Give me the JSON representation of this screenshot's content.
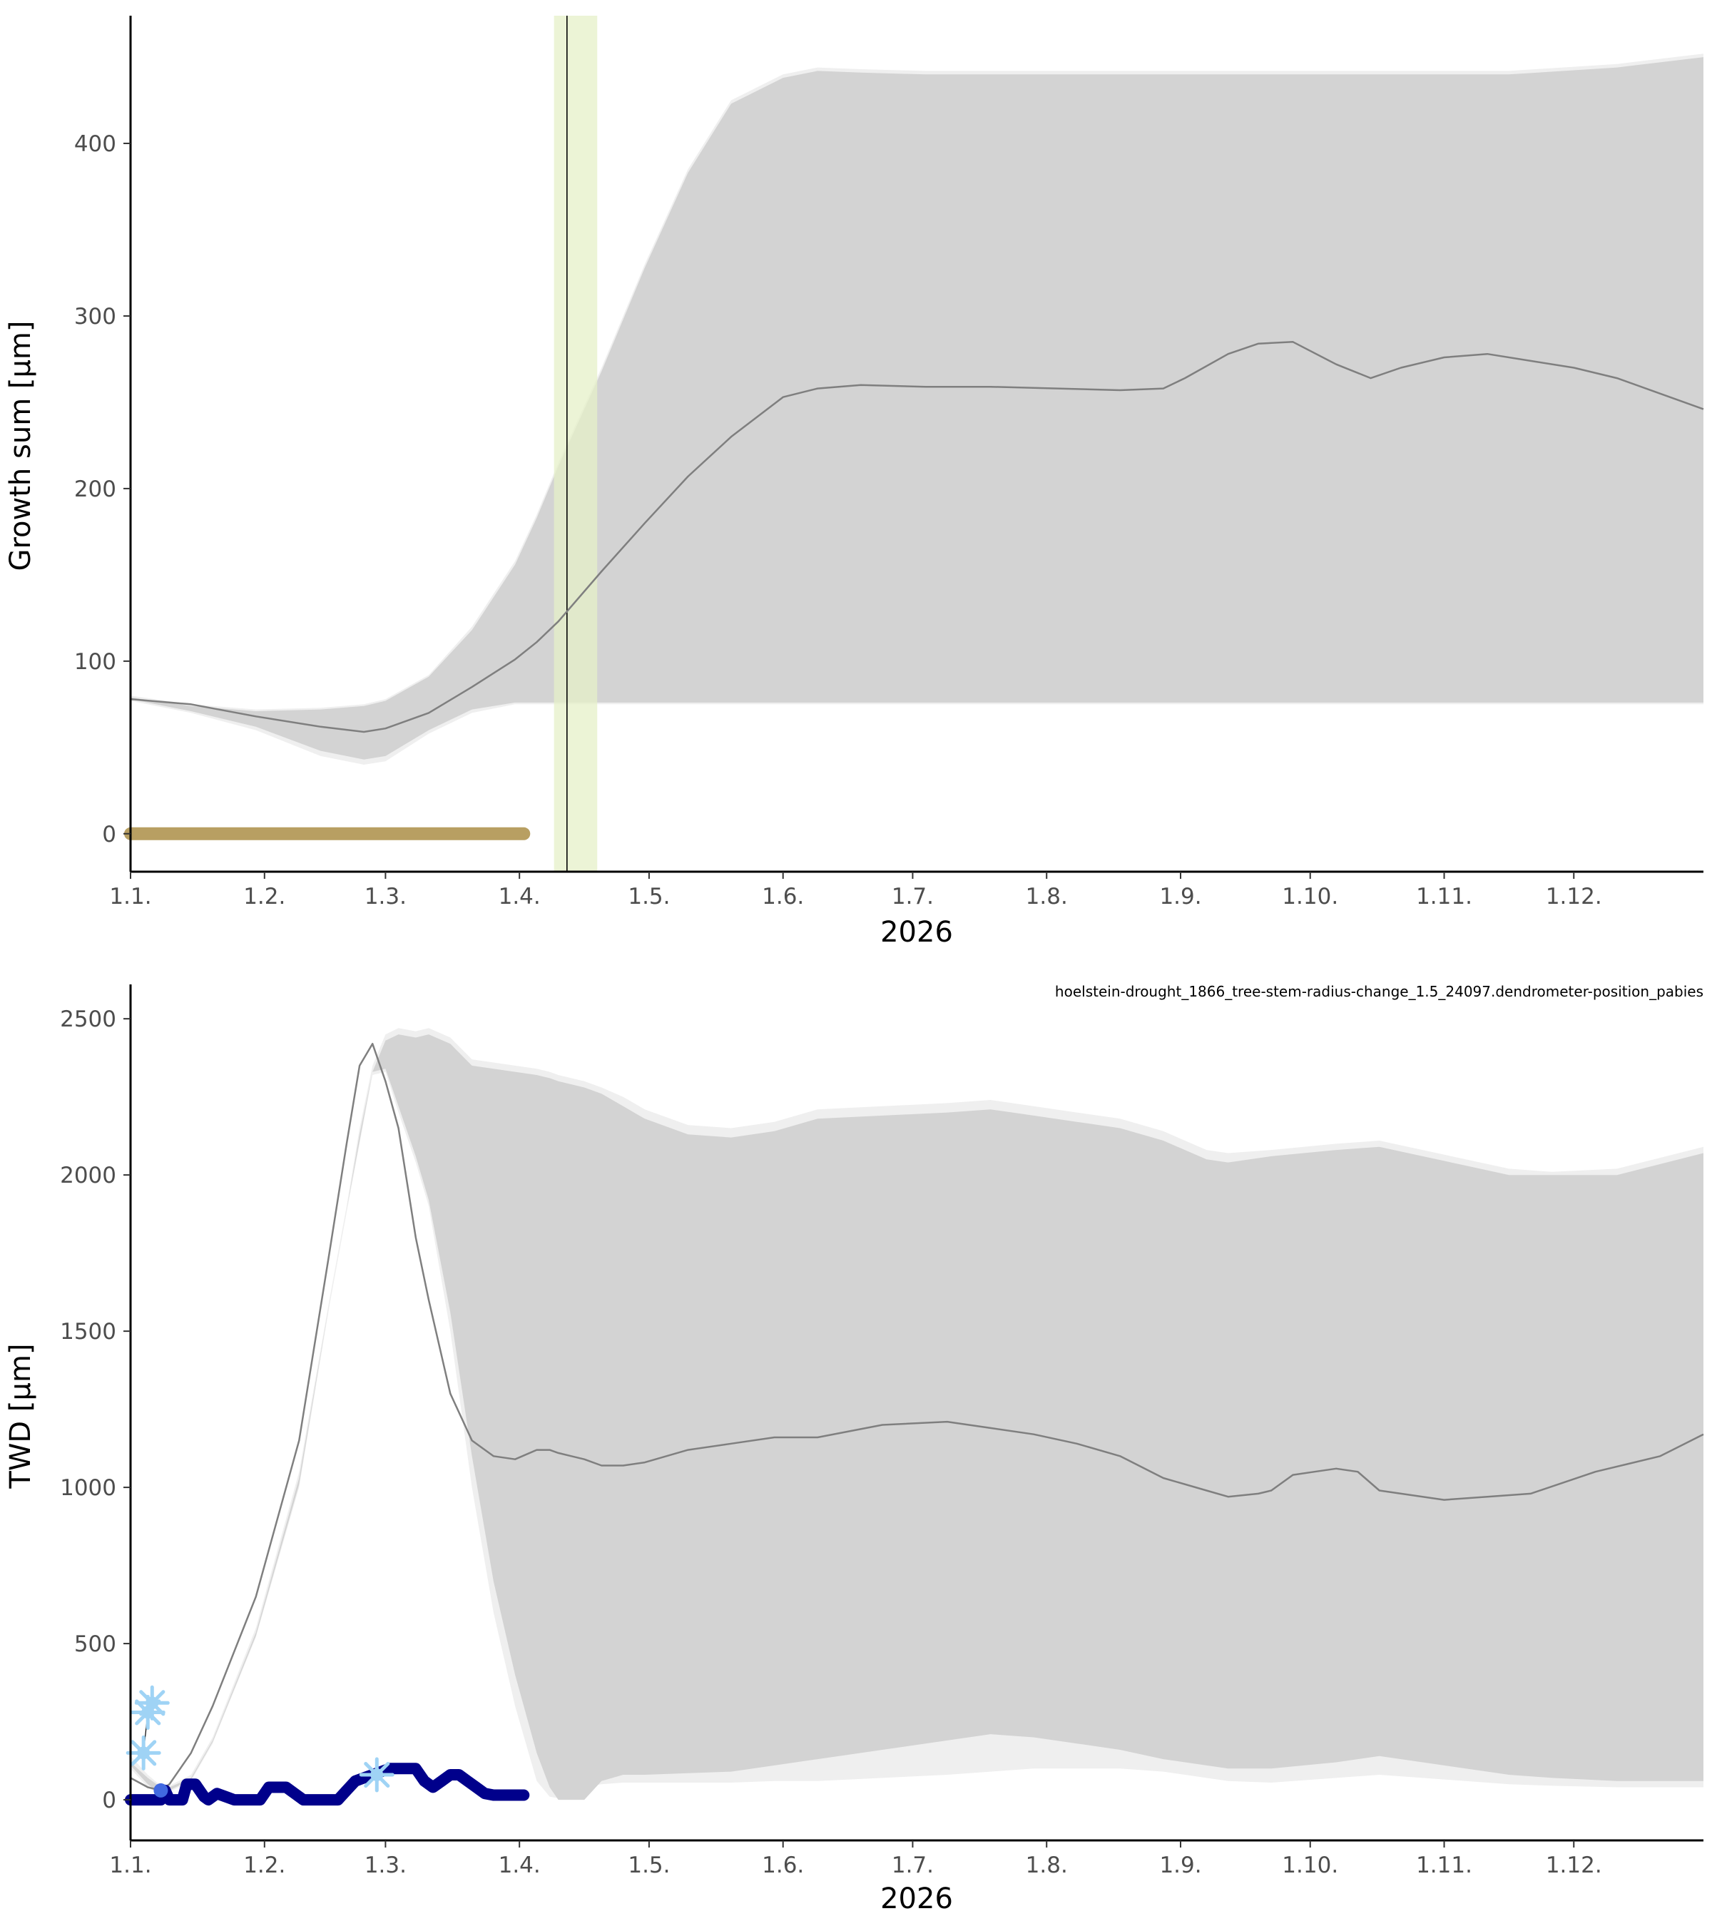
{
  "figure": {
    "caption": "hoelstein-drought_1866_tree-stem-radius-change_1.5_24097.dendrometer-position_pabies"
  },
  "colors": {
    "band_outer": "#efefef",
    "band_inner": "#d3d3d3",
    "median_line": "#7f7f7f",
    "growth_current": "#b89f62",
    "twd_current": "#00008b",
    "twd_marker": "#4169e1",
    "frost_icon": "#9fd3f5",
    "growth_onset_band": "#e6f0c8",
    "growth_onset_line": "#000000",
    "axis": "#000000"
  },
  "x_axis": {
    "title": "2026",
    "ticks": [
      "1.1.",
      "1.2.",
      "1.3.",
      "1.4.",
      "1.5.",
      "1.6.",
      "1.7.",
      "1.8.",
      "1.9.",
      "1.10.",
      "1.11.",
      "1.12."
    ]
  },
  "chart_data": [
    {
      "type": "area",
      "id": "growth",
      "xlabel": "2026",
      "ylabel": "Growth sum [µm]",
      "x_unit": "day of year 2026",
      "xlim": [
        1,
        365
      ],
      "ylim": [
        -22,
        474
      ],
      "yticks": [
        0,
        100,
        200,
        300,
        400
      ],
      "grid": false,
      "band_outer": {
        "x": [
          1,
          15,
          30,
          45,
          55,
          60,
          70,
          80,
          90,
          95,
          100,
          110,
          120,
          130,
          140,
          152,
          160,
          170,
          185,
          200,
          230,
          260,
          290,
          320,
          345,
          365
        ],
        "upper": [
          80,
          75,
          72,
          73,
          75,
          78,
          92,
          120,
          158,
          185,
          215,
          270,
          330,
          385,
          425,
          440,
          444,
          443,
          442,
          442,
          442,
          442,
          442,
          442,
          446,
          452
        ],
        "lower": [
          77,
          70,
          60,
          45,
          40,
          42,
          58,
          70,
          75,
          75,
          75,
          75,
          75,
          75,
          75,
          75,
          75,
          75,
          75,
          75,
          75,
          75,
          75,
          75,
          75,
          75
        ]
      },
      "band_inner": {
        "x": [
          1,
          15,
          30,
          45,
          55,
          60,
          70,
          80,
          90,
          95,
          100,
          110,
          120,
          130,
          140,
          152,
          160,
          170,
          185,
          200,
          230,
          260,
          290,
          320,
          345,
          365
        ],
        "upper": [
          79,
          74,
          71,
          72,
          74,
          77,
          91,
          118,
          156,
          183,
          213,
          268,
          328,
          383,
          423,
          438,
          442,
          441,
          440,
          440,
          440,
          440,
          440,
          440,
          444,
          450
        ],
        "lower": [
          78,
          71,
          62,
          48,
          43,
          45,
          60,
          72,
          76,
          76,
          76,
          76,
          76,
          76,
          76,
          76,
          76,
          76,
          76,
          76,
          76,
          76,
          76,
          76,
          76,
          76
        ]
      },
      "series": [
        {
          "role": "median",
          "x": [
            1,
            15,
            30,
            45,
            55,
            60,
            70,
            80,
            90,
            95,
            100,
            110,
            120,
            130,
            140,
            152,
            160,
            170,
            185,
            200,
            230,
            240,
            245,
            255,
            262,
            270,
            280,
            288,
            295,
            305,
            315,
            325,
            335,
            345,
            355,
            365
          ],
          "y": [
            78,
            75,
            68,
            62,
            59,
            61,
            70,
            85,
            101,
            111,
            123,
            152,
            180,
            207,
            230,
            253,
            258,
            260,
            259,
            259,
            257,
            258,
            264,
            278,
            284,
            285,
            272,
            264,
            270,
            276,
            278,
            274,
            270,
            264,
            255,
            246
          ]
        },
        {
          "role": "current",
          "x": [
            1,
            92
          ],
          "y": [
            0,
            0
          ]
        }
      ],
      "growth_onset": {
        "x": 102,
        "band": [
          99,
          109
        ]
      }
    },
    {
      "type": "area",
      "id": "twd",
      "xlabel": "2026",
      "ylabel": "TWD [µm]",
      "x_unit": "day of year 2026",
      "xlim": [
        1,
        365
      ],
      "ylim": [
        -130,
        2610
      ],
      "yticks": [
        0,
        500,
        1000,
        1500,
        2000,
        2500
      ],
      "grid": false,
      "band_outer": {
        "x": [
          1,
          5,
          8,
          10,
          15,
          20,
          30,
          40,
          47,
          51,
          54,
          57,
          60,
          63,
          67,
          70,
          75,
          80,
          85,
          90,
          95,
          98,
          100,
          103,
          106,
          110,
          115,
          120,
          130,
          140,
          150,
          160,
          175,
          190,
          200,
          210,
          220,
          230,
          240,
          250,
          255,
          265,
          280,
          290,
          300,
          310,
          320,
          330,
          345,
          365
        ],
        "upper": [
          140,
          80,
          45,
          45,
          80,
          200,
          550,
          1050,
          1600,
          1900,
          2150,
          2350,
          2450,
          2470,
          2460,
          2470,
          2440,
          2370,
          2360,
          2350,
          2340,
          2330,
          2320,
          2310,
          2300,
          2280,
          2250,
          2210,
          2160,
          2150,
          2170,
          2210,
          2220,
          2230,
          2240,
          2220,
          2200,
          2180,
          2140,
          2080,
          2070,
          2080,
          2100,
          2110,
          2080,
          2050,
          2020,
          2010,
          2020,
          2090
        ],
        "lower": [
          100,
          40,
          15,
          25,
          60,
          180,
          520,
          1000,
          1580,
          1880,
          2100,
          2320,
          2330,
          2200,
          2040,
          1900,
          1500,
          1000,
          600,
          300,
          60,
          10,
          5,
          20,
          40,
          50,
          55,
          55,
          55,
          55,
          60,
          60,
          70,
          80,
          90,
          100,
          100,
          100,
          90,
          70,
          60,
          55,
          70,
          80,
          70,
          60,
          50,
          45,
          40,
          40
        ]
      },
      "band_inner": {
        "x": [
          1,
          5,
          8,
          10,
          15,
          20,
          30,
          40,
          47,
          51,
          54,
          57,
          60,
          63,
          67,
          70,
          75,
          80,
          85,
          90,
          95,
          98,
          100,
          103,
          106,
          110,
          115,
          120,
          130,
          140,
          150,
          160,
          175,
          190,
          200,
          210,
          220,
          230,
          240,
          250,
          255,
          265,
          280,
          290,
          300,
          310,
          320,
          330,
          345,
          365
        ],
        "upper": [
          120,
          70,
          40,
          40,
          70,
          190,
          535,
          1030,
          1590,
          1890,
          2130,
          2330,
          2430,
          2450,
          2440,
          2450,
          2420,
          2350,
          2340,
          2330,
          2320,
          2310,
          2300,
          2290,
          2280,
          2260,
          2220,
          2180,
          2130,
          2120,
          2140,
          2180,
          2190,
          2200,
          2210,
          2190,
          2170,
          2150,
          2110,
          2050,
          2040,
          2060,
          2080,
          2090,
          2060,
          2030,
          2000,
          2000,
          2000,
          2070
        ],
        "lower": [
          110,
          50,
          20,
          30,
          65,
          185,
          525,
          1010,
          1590,
          1890,
          2110,
          2330,
          2340,
          2220,
          2060,
          1920,
          1560,
          1100,
          700,
          400,
          150,
          40,
          0,
          0,
          0,
          60,
          80,
          80,
          85,
          90,
          110,
          130,
          160,
          190,
          210,
          200,
          180,
          160,
          130,
          110,
          100,
          100,
          120,
          140,
          120,
          100,
          80,
          70,
          60,
          60
        ]
      },
      "series": [
        {
          "role": "median",
          "x": [
            1,
            5,
            8,
            10,
            15,
            20,
            30,
            40,
            47,
            51,
            54,
            57,
            60,
            63,
            67,
            70,
            75,
            80,
            85,
            90,
            95,
            98,
            100,
            103,
            106,
            110,
            115,
            120,
            130,
            140,
            150,
            160,
            175,
            190,
            200,
            210,
            220,
            230,
            240,
            250,
            255,
            262,
            265,
            270,
            275,
            280,
            285,
            290,
            295,
            305,
            315,
            325,
            340,
            355,
            365
          ],
          "y": [
            70,
            40,
            30,
            50,
            150,
            300,
            650,
            1150,
            1750,
            2100,
            2350,
            2420,
            2300,
            2150,
            1800,
            1600,
            1300,
            1150,
            1100,
            1090,
            1120,
            1120,
            1110,
            1100,
            1090,
            1070,
            1070,
            1080,
            1120,
            1140,
            1160,
            1160,
            1200,
            1210,
            1190,
            1170,
            1140,
            1100,
            1030,
            990,
            970,
            980,
            990,
            1040,
            1050,
            1060,
            1050,
            990,
            980,
            960,
            970,
            980,
            1050,
            1100,
            1170
          ]
        },
        {
          "role": "current",
          "x": [
            1,
            3,
            6,
            8,
            9,
            10,
            11,
            12,
            13,
            14,
            15,
            16,
            17,
            18,
            19,
            21,
            23,
            25,
            27,
            29,
            31,
            33,
            35,
            37,
            39,
            41,
            43,
            45,
            47,
            49,
            51,
            53,
            55,
            57,
            59,
            61,
            63,
            65,
            67,
            69,
            71,
            73,
            75,
            77,
            79,
            81,
            83,
            85,
            87,
            89,
            91,
            92
          ],
          "y": [
            0,
            0,
            0,
            0,
            30,
            0,
            0,
            0,
            0,
            50,
            50,
            50,
            30,
            10,
            0,
            20,
            10,
            0,
            0,
            0,
            0,
            40,
            40,
            40,
            20,
            0,
            0,
            0,
            0,
            0,
            30,
            60,
            70,
            80,
            90,
            100,
            100,
            100,
            100,
            60,
            40,
            60,
            80,
            80,
            60,
            40,
            20,
            15,
            15,
            15,
            15,
            15
          ]
        }
      ],
      "markers": [
        {
          "x": 8,
          "y": 30
        }
      ],
      "frost_events": [
        {
          "x": 4,
          "y": 150
        },
        {
          "x": 5,
          "y": 280
        },
        {
          "x": 6,
          "y": 310
        },
        {
          "x": 58,
          "y": 80
        }
      ]
    }
  ]
}
